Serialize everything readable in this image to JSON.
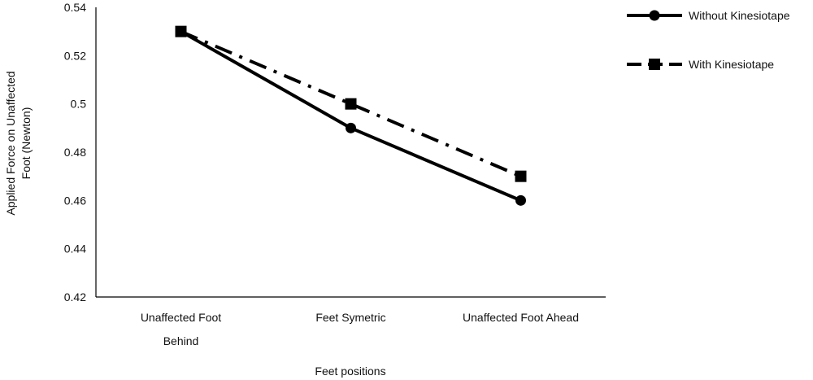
{
  "chart_data": {
    "type": "line",
    "xlabel": "Feet positions",
    "ylabel": "Applied Force on Unaffected Foot (Newton)",
    "ylabel_lines": [
      "Applied Force on Unaffected",
      "Foot (Newton)"
    ],
    "categories": [
      [
        "Unaffected Foot",
        "Behind"
      ],
      [
        "Feet Symetric"
      ],
      [
        "Unaffected Foot Ahead"
      ]
    ],
    "ylim": [
      0.42,
      0.54
    ],
    "yticks": [
      0.42,
      0.44,
      0.46,
      0.48,
      0.5,
      0.52,
      0.54
    ],
    "ytick_labels": [
      "0.42",
      "0.44",
      "0.46",
      "0.48",
      "0.5",
      "0.52",
      "0.54"
    ],
    "grid": false,
    "legend_position": "top-right",
    "series": [
      {
        "name": "Without Kinesiotape",
        "values": [
          0.53,
          0.49,
          0.46
        ],
        "marker": "circle",
        "line_style": "solid",
        "color": "#000000"
      },
      {
        "name": "With Kinesiotape",
        "values": [
          0.53,
          0.5,
          0.47
        ],
        "marker": "square",
        "line_style": "dash-dot",
        "color": "#000000"
      }
    ]
  }
}
